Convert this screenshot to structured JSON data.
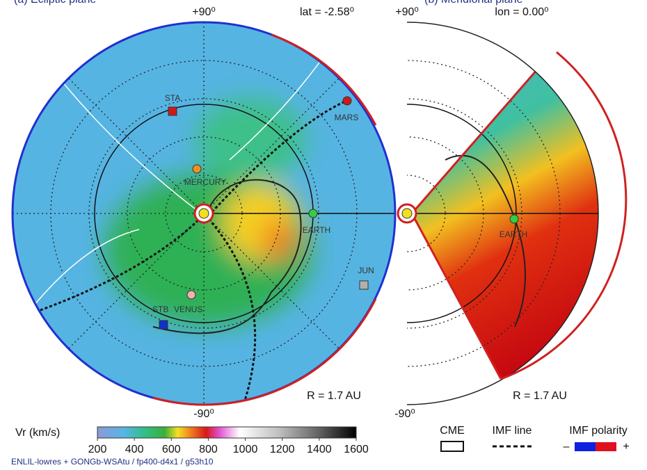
{
  "panels": [
    {
      "title": "(a) Ecliptic plane",
      "top_label": "+90⁰",
      "bottom_label": "-90⁰",
      "angle_label": "lat = -2.58⁰",
      "radius_label": "R = 1.7 AU",
      "bodies": [
        "STA",
        "MARS",
        "MERCURY",
        "EARTH",
        "JUN",
        "STB",
        "VENUS"
      ]
    },
    {
      "title": "(b) Meridional plane",
      "top_label": "+90⁰",
      "bottom_label": "-90⁰",
      "angle_label": "lon = 0.00⁰",
      "radius_label": "R = 1.7 AU",
      "bodies": [
        "EARTH"
      ]
    }
  ],
  "colorbar": {
    "label": "Vr (km/s)",
    "range": [
      200,
      1600
    ],
    "ticks": [
      200,
      400,
      600,
      800,
      1000,
      1200,
      1400,
      1600
    ]
  },
  "legend": {
    "cme": "CME",
    "imf_line": "IMF line",
    "imf_polarity": "IMF polarity",
    "minus": "–",
    "plus": "+"
  },
  "footer": "ENLIL-lowres + GONGb-WSAtu / fp400-d4x1 / g53h10"
}
